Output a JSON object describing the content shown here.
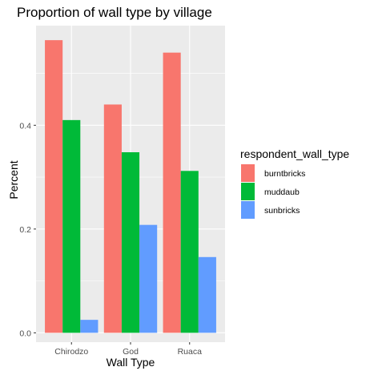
{
  "chart_data": {
    "type": "bar",
    "title": "Proportion of wall type by village",
    "xlabel": "Wall Type",
    "ylabel": "Percent",
    "categories": [
      "Chirodzo",
      "God",
      "Ruaca"
    ],
    "series": [
      {
        "name": "burntbricks",
        "color": "#F8766D",
        "values": [
          0.564,
          0.44,
          0.54
        ]
      },
      {
        "name": "muddaub",
        "color": "#00BA38",
        "values": [
          0.41,
          0.348,
          0.312
        ]
      },
      {
        "name": "sunbricks",
        "color": "#619CFF",
        "values": [
          0.025,
          0.208,
          0.146
        ]
      }
    ],
    "yticks": [
      0.0,
      0.2,
      0.4
    ],
    "ytick_labels": [
      "0.0",
      "0.2",
      "0.4"
    ],
    "ylim": [
      -0.018,
      0.592
    ],
    "legend": {
      "title": "respondent_wall_type",
      "position": "right"
    },
    "grid": true,
    "panel_background": "#EBEBEB",
    "grid_major_color": "#FFFFFF",
    "text_color": "#000000",
    "tick_label_color": "#4D4D4D"
  }
}
